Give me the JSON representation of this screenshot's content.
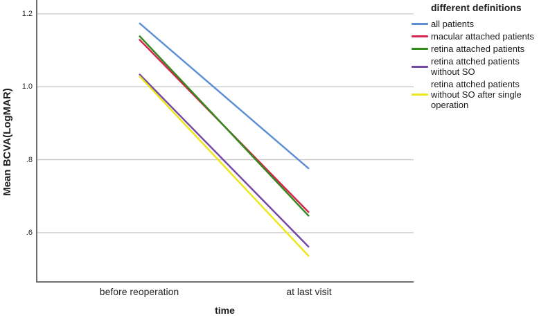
{
  "chart_data": {
    "type": "line",
    "title": "",
    "categories": [
      "before reoperation",
      "at last visit"
    ],
    "series": [
      {
        "name": "all patients",
        "color": "#5d8fd5",
        "values": [
          1.175,
          0.775
        ]
      },
      {
        "name": "macular attached patients",
        "color": "#d6244e",
        "values": [
          1.13,
          0.655
        ]
      },
      {
        "name": "retina attached patients",
        "color": "#33891e",
        "values": [
          1.14,
          0.645
        ]
      },
      {
        "name": "retina attched patients without SO",
        "color": "#7449a5",
        "values": [
          1.035,
          0.56
        ]
      },
      {
        "name": "retina attched patients without SO after single operation",
        "color": "#ede61a",
        "values": [
          1.03,
          0.535
        ]
      }
    ],
    "xlabel": "time",
    "ylabel": "Mean BCVA(LogMAR)",
    "y_ticks": [
      {
        "label": "1.2",
        "value": 1.2
      },
      {
        "label": "1.0",
        "value": 1.0
      },
      {
        "label": ".8",
        "value": 0.8
      },
      {
        "label": ".6",
        "value": 0.6
      }
    ],
    "ylim": [
      0.463,
      1.238
    ],
    "grid": "horizontal-only",
    "legend_position": "top-right",
    "markers": "none"
  },
  "axes": {
    "y_title": "Mean BCVA(LogMAR)",
    "x_title": "time"
  },
  "legend": {
    "title": "different definitions",
    "labels": [
      "all patients",
      "macular attached patients",
      "retina attached patients",
      "retina attched patients\nwithout SO",
      "retina attched patients\nwithout SO after single\noperation"
    ]
  },
  "style": {
    "grid_color": "#c9c9c9",
    "axis_color": "#6f6f6f",
    "text_color": "#1c1c1c",
    "background": "#ffffff"
  }
}
